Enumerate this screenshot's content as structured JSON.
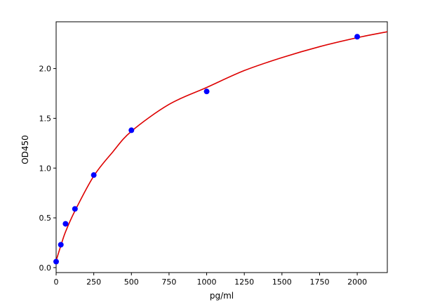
{
  "chart_data": {
    "type": "scatter",
    "title": "",
    "xlabel": "pg/ml",
    "ylabel": "OD450",
    "xlim": [
      0,
      2200
    ],
    "ylim": [
      -0.05,
      2.47
    ],
    "xticks": [
      0,
      250,
      500,
      750,
      1000,
      1250,
      1500,
      1750,
      2000
    ],
    "yticks": [
      0.0,
      0.5,
      1.0,
      1.5,
      2.0
    ],
    "ytick_labels": [
      "0.0",
      "0.5",
      "1.0",
      "1.5",
      "2.0"
    ],
    "grid": false,
    "points": {
      "x": [
        0,
        31.25,
        62.5,
        125,
        250,
        500,
        1000,
        2000
      ],
      "y": [
        0.06,
        0.23,
        0.44,
        0.59,
        0.93,
        1.38,
        1.77,
        2.32
      ]
    },
    "point_color": "#0000ff",
    "fit_curve": {
      "x": [
        0,
        31.25,
        62.5,
        125,
        250,
        375,
        500,
        750,
        1000,
        1250,
        1500,
        1750,
        2000,
        2200
      ],
      "y": [
        0.07,
        0.22,
        0.36,
        0.57,
        0.92,
        1.16,
        1.37,
        1.64,
        1.81,
        1.98,
        2.11,
        2.22,
        2.31,
        2.37
      ],
      "color": "#dd0000"
    }
  }
}
